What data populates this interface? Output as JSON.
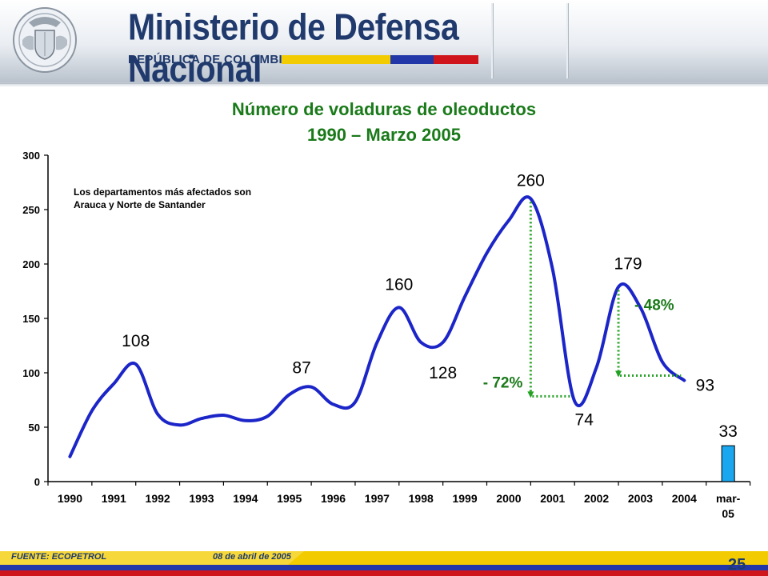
{
  "header": {
    "brand": "Ministerio de Defensa Nacional",
    "subtitle": "REPÚBLICA DE COLOMBIA",
    "colors": {
      "yellow": "#f2cc00",
      "blue": "#2338a8",
      "red": "#d0141c",
      "navy": "#203a6d"
    }
  },
  "chart_data": {
    "type": "line",
    "title": [
      "Número de voladuras de oleoductos",
      "1990 – Marzo 2005"
    ],
    "categories": [
      "1990",
      "1991",
      "1992",
      "1993",
      "1994",
      "1995",
      "1996",
      "1997",
      "1998",
      "1999",
      "2000",
      "2001",
      "2002",
      "2003",
      "2004",
      "mar-05"
    ],
    "x": [
      1990.5,
      1991,
      1991.5,
      1992,
      1992.5,
      1993,
      1993.5,
      1994,
      1994.5,
      1995,
      1995.5,
      1996,
      1996.5,
      1997,
      1997.5,
      1998,
      1998.5,
      1999,
      1999.5,
      2000,
      2000.5,
      2001,
      2001.5,
      2002,
      2002.5,
      2003,
      2003.5,
      2004,
      2004.5
    ],
    "y": [
      23,
      65,
      90,
      108,
      62,
      52,
      58,
      61,
      56,
      60,
      80,
      87,
      71,
      73,
      128,
      160,
      128,
      128,
      170,
      210,
      240,
      260,
      195,
      74,
      105,
      179,
      160,
      110,
      93
    ],
    "bar": {
      "category": "mar-05",
      "value": 33,
      "color": "#1aa7f0"
    },
    "line_color": "#1b25c8",
    "ylim": [
      0,
      300
    ],
    "yticks": [
      0,
      50,
      100,
      150,
      200,
      250,
      300
    ],
    "xlabel": "",
    "ylabel": "",
    "data_labels": [
      {
        "text": "108",
        "x": 1992.0,
        "y": 108
      },
      {
        "text": "87",
        "x": 1996.0,
        "y": 87
      },
      {
        "text": "160",
        "x": 1998.0,
        "y": 160
      },
      {
        "text": "128",
        "x": 1999.0,
        "y": 128
      },
      {
        "text": "260",
        "x": 2001.0,
        "y": 260
      },
      {
        "text": "74",
        "x": 2002.0,
        "y": 74
      },
      {
        "text": "179",
        "x": 2003.0,
        "y": 179
      },
      {
        "text": "93",
        "x": 2004.5,
        "y": 93
      },
      {
        "text": "33",
        "x": 2005.5,
        "y": 33
      }
    ],
    "annotations": {
      "note": [
        "Los departamentos más afectados son",
        "Arauca y Norte de Santander"
      ],
      "drop_2001": "- 72%",
      "drop_2003": "- 48%"
    },
    "drops": [
      {
        "from_year": 2001.0,
        "from_value": 260,
        "to_year": 2002.0,
        "to_value": 74
      },
      {
        "from_year": 2003.0,
        "from_value": 179,
        "to_year": 2004.5,
        "to_value": 93
      }
    ],
    "drop_color": "#22a022",
    "label_color": "#1a7a1a"
  },
  "footer": {
    "source": "FUENTE: ECOPETROL",
    "date": "08 de abril de 2005",
    "page": "25"
  }
}
